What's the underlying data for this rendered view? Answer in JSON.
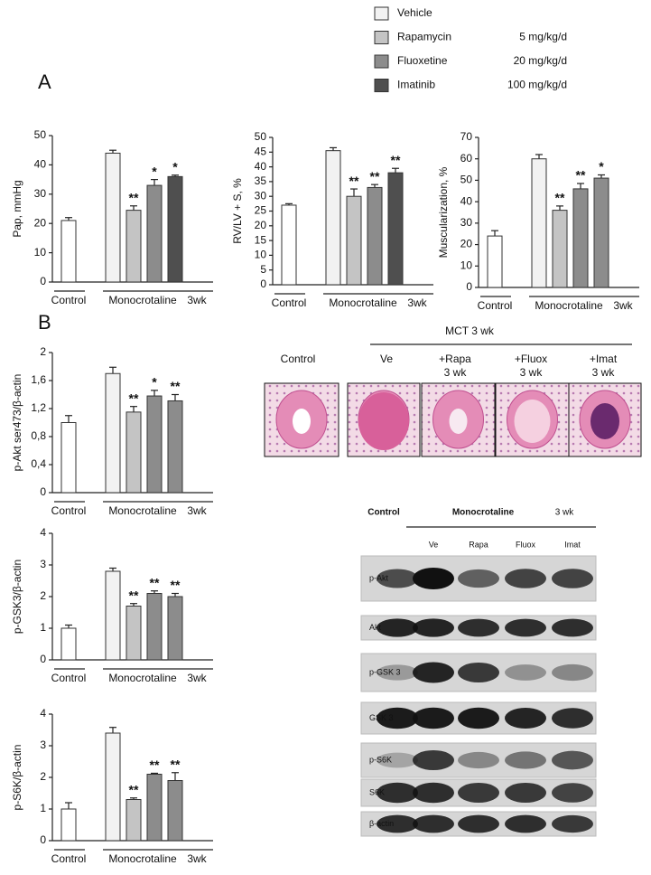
{
  "panel_labels": [
    "A",
    "B"
  ],
  "legend": [
    {
      "name": "Vehicle",
      "dose": null,
      "color": "#f2f2f2"
    },
    {
      "name": "Rapamycin",
      "dose": "5 mg/kg/d",
      "color": "#c4c4c4"
    },
    {
      "name": "Fluoxetine",
      "dose": "20 mg/kg/d",
      "color": "#8c8c8c"
    },
    {
      "name": "Imatinib",
      "dose": "100 mg/kg/d",
      "color": "#4f4f4f"
    }
  ],
  "chart_data": [
    {
      "type": "bar",
      "ylabel": "Pap,  mmHg",
      "ylim": [
        0,
        50
      ],
      "yticks": [
        0,
        10,
        20,
        30,
        40,
        50
      ],
      "x_labels": [
        "Control",
        "Monocrotaline",
        "3wk"
      ],
      "values": [
        21,
        44,
        24.5,
        33,
        36
      ],
      "errors": [
        1,
        1,
        1.5,
        2,
        0.5
      ],
      "colors": [
        "#ffffff",
        "#f2f2f2",
        "#c4c4c4",
        "#8c8c8c",
        "#4f4f4f"
      ],
      "annotations": [
        null,
        null,
        "**",
        "*",
        "*"
      ]
    },
    {
      "type": "bar",
      "ylabel": "RV/LV + S, %",
      "ylim": [
        0,
        50
      ],
      "yticks": [
        0,
        5,
        10,
        15,
        20,
        25,
        30,
        35,
        40,
        45,
        50
      ],
      "x_labels": [
        "Control",
        "Monocrotaline",
        "3wk"
      ],
      "values": [
        27,
        45.5,
        30,
        33,
        38
      ],
      "errors": [
        0.5,
        1,
        2.5,
        1,
        1.5
      ],
      "colors": [
        "#ffffff",
        "#f2f2f2",
        "#c4c4c4",
        "#8c8c8c",
        "#4f4f4f"
      ],
      "annotations": [
        null,
        null,
        "**",
        "**",
        "**"
      ]
    },
    {
      "type": "bar",
      "ylabel": "Muscularization, %",
      "ylim": [
        0,
        70
      ],
      "yticks": [
        0,
        10,
        20,
        30,
        40,
        50,
        60,
        70
      ],
      "x_labels": [
        "Control",
        "Monocrotaline",
        "3wk"
      ],
      "values": [
        24,
        60,
        36,
        46,
        51
      ],
      "errors": [
        2.5,
        2,
        2,
        2.5,
        1.5
      ],
      "colors": [
        "#ffffff",
        "#f2f2f2",
        "#c4c4c4",
        "#8c8c8c",
        "#8c8c8c"
      ],
      "annotations": [
        null,
        null,
        "**",
        "**",
        "*"
      ]
    },
    {
      "type": "bar",
      "ylabel": "p-Akt  ser473/β-actin",
      "ylim": [
        0,
        2
      ],
      "yticks": [
        0,
        {
          "value": 0.4,
          "label": "0,4"
        },
        {
          "value": 0.8,
          "label": "0,8"
        },
        {
          "value": 1.2,
          "label": "1,2"
        },
        {
          "value": 1.6,
          "label": "1,6"
        },
        2
      ],
      "x_labels": [
        "Control",
        "Monocrotaline",
        "3wk"
      ],
      "values": [
        1.0,
        1.7,
        1.15,
        1.38,
        1.31
      ],
      "errors": [
        0.1,
        0.09,
        0.08,
        0.08,
        0.09
      ],
      "colors": [
        "#ffffff",
        "#f2f2f2",
        "#c4c4c4",
        "#8c8c8c",
        "#8c8c8c"
      ],
      "annotations": [
        null,
        null,
        "**",
        "*",
        "**"
      ]
    },
    {
      "type": "bar",
      "ylabel": "p-GSK3/β-actin",
      "ylim": [
        0,
        4
      ],
      "yticks": [
        0,
        1,
        2,
        3,
        4
      ],
      "x_labels": [
        "Control",
        "Monocrotaline",
        "3wk"
      ],
      "values": [
        1.0,
        2.8,
        1.7,
        2.1,
        2.0
      ],
      "errors": [
        0.1,
        0.1,
        0.08,
        0.08,
        0.1
      ],
      "colors": [
        "#ffffff",
        "#f2f2f2",
        "#c4c4c4",
        "#8c8c8c",
        "#8c8c8c"
      ],
      "annotations": [
        null,
        null,
        "**",
        "**",
        "**"
      ]
    },
    {
      "type": "bar",
      "ylabel": "p-S6K/β-actin",
      "ylim": [
        0,
        4
      ],
      "yticks": [
        0,
        1,
        2,
        3,
        4
      ],
      "x_labels": [
        "Control",
        "Monocrotaline",
        "3wk"
      ],
      "values": [
        1.0,
        3.4,
        1.3,
        2.1,
        1.9
      ],
      "errors": [
        0.2,
        0.18,
        0.05,
        0.03,
        0.25
      ],
      "colors": [
        "#ffffff",
        "#f2f2f2",
        "#c4c4c4",
        "#8c8c8c",
        "#8c8c8c"
      ],
      "annotations": [
        null,
        null,
        "**",
        "**",
        "**"
      ]
    }
  ],
  "histology": {
    "title": "MCT  3 wk",
    "labels": [
      "Control",
      "Ve",
      "+Rapa",
      "3 wk",
      "+Fluox",
      "3 wk",
      "+Imat",
      "3 wk"
    ]
  },
  "blot": {
    "header": [
      "Control",
      "Monocrotaline",
      "3 wk"
    ],
    "lanes": [
      "Ve",
      "Rapa",
      "Fluox",
      "Imat"
    ],
    "rows": [
      "p-Akt",
      "Akt",
      "p-GSK 3",
      "GSK 3",
      "p-S6K",
      "S6K",
      "β-actin"
    ]
  }
}
